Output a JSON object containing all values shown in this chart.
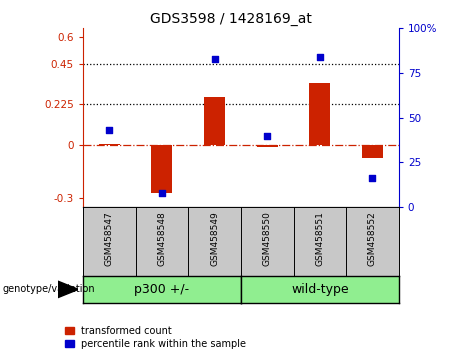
{
  "title": "GDS3598 / 1428169_at",
  "samples": [
    "GSM458547",
    "GSM458548",
    "GSM458549",
    "GSM458550",
    "GSM458551",
    "GSM458552"
  ],
  "red_values": [
    0.003,
    -0.27,
    0.265,
    -0.012,
    0.345,
    -0.075
  ],
  "blue_values_pct": [
    43,
    8,
    83,
    40,
    84,
    16
  ],
  "ylim": [
    -0.35,
    0.65
  ],
  "left_yticks": [
    -0.3,
    0.0,
    0.225,
    0.45,
    0.6
  ],
  "left_ytick_labels": [
    "-0.3",
    "0",
    "0.225",
    "0.45",
    "0.6"
  ],
  "right_ylim": [
    0,
    100
  ],
  "right_yticks": [
    0,
    25,
    50,
    75,
    100
  ],
  "right_ytick_labels": [
    "0",
    "25",
    "50",
    "75",
    "100%"
  ],
  "hline_y": [
    0.225,
    0.45
  ],
  "zero_line_y": 0.0,
  "bar_color": "#CC2200",
  "blue_marker_color": "#0000CC",
  "bar_width": 0.4,
  "plot_bg": "#ffffff",
  "legend_red_label": "transformed count",
  "legend_blue_label": "percentile rank within the sample",
  "genotype_label": "genotype/variation",
  "left_axis_color": "#CC2200",
  "right_axis_color": "#0000CC",
  "sample_box_color": "#C8C8C8",
  "group_box_color": "#90EE90",
  "title_fontsize": 10,
  "tick_fontsize": 7.5,
  "legend_fontsize": 7,
  "group_fontsize": 9,
  "sample_fontsize": 6.5
}
